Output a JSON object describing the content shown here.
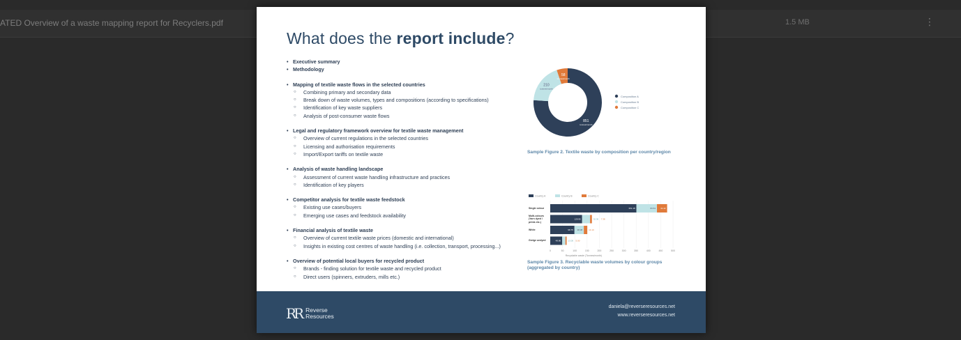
{
  "file_row": {
    "name": "ATED Overview of a waste mapping report for Recyclers.pdf",
    "size": "1.5 MB",
    "more_icon": "more-vert-icon"
  },
  "slide": {
    "title_pre": "What does the ",
    "title_bold": "report include",
    "title_post": "?",
    "groups": [
      {
        "items": [
          "Executive summary"
        ],
        "subs": []
      },
      {
        "items": [
          "Methodology"
        ],
        "subs": []
      },
      {
        "items": [
          "Mapping of textile waste flows in the selected countries"
        ],
        "subs": [
          "Combining primary and secondary data",
          "Break down of waste volumes, types and compositions (according to specifications)",
          "Identification of key waste suppliers",
          "Analysis of post-consumer waste flows"
        ]
      },
      {
        "items": [
          "Legal and regulatory framework overview for textile waste management"
        ],
        "subs": [
          "Overview of current regulations in the selected countries",
          "Licensing and authorisation requirements",
          "Import/Export tariffs on textile waste"
        ]
      },
      {
        "items": [
          "Analysis of waste handling landscape"
        ],
        "subs": [
          "Assessment of current waste handling infrastructure and practices",
          "Identification of key players"
        ]
      },
      {
        "items": [
          "Competitor analysis for textile waste feedstock"
        ],
        "subs": [
          "Existing use cases/buyers",
          "Emerging use cases and feedstock availability"
        ]
      },
      {
        "items": [
          "Financial analysis of textile waste"
        ],
        "subs": [
          "Overview of current textile waste prices (domestic and international)",
          "Insights in existing cost centres of waste handling (i.e. collection, transport, processing...)"
        ]
      },
      {
        "items": [
          "Overview of potential local buyers for recycled product"
        ],
        "subs": [
          "Brands - finding solution for textile waste and recycled product",
          "Direct users (spinners, extruders, mills etc.)"
        ]
      }
    ],
    "footer": {
      "logo_mark": "RR",
      "logo_line1": "Reverse",
      "logo_line2": "Resources",
      "email": "daniela@reverseresources.net",
      "website": "www.reverseresources.net"
    }
  },
  "chart_data": [
    {
      "type": "pie",
      "donut": true,
      "caption": "Sample Figure 2. Textile waste by composition per country/region",
      "slices": [
        {
          "name": "Composition A",
          "value": 851,
          "label": "851",
          "unit": "tonnes/month",
          "color": "#2e4059"
        },
        {
          "name": "Composition B",
          "value": 210,
          "label": "210",
          "unit": "tonnes/month",
          "color": "#bfe3e6"
        },
        {
          "name": "Composition C",
          "value": 58,
          "label": "58",
          "unit": "tonnes/month",
          "color": "#e07a3a"
        }
      ],
      "legend": "right"
    },
    {
      "type": "bar",
      "orientation": "horizontal",
      "stacked": true,
      "caption": "Sample Figure 3. Recyclable waste volumes by colour groups (aggregated by country)",
      "categories": [
        "Single colour",
        "Multi-colours (Yarn dyed / prints etc.)",
        "White",
        "Greige undyed"
      ],
      "series": [
        {
          "name": "Country A",
          "color": "#2e4059",
          "values": [
            351.18,
            129.95,
            98.75,
            48.86
          ]
        },
        {
          "name": "Country B",
          "color": "#bfe3e6",
          "values": [
            83.54,
            32.36,
            38.08,
            13.0
          ]
        },
        {
          "name": "Country C",
          "color": "#e07a3a",
          "values": [
            41.42,
            7.38,
            14.1,
            5.0
          ]
        }
      ],
      "xlabel": "Recyclable waste (Tonnes/month)",
      "xlim": [
        0,
        500
      ],
      "xticks": [
        0,
        50,
        100,
        150,
        200,
        250,
        300,
        350,
        400,
        450,
        500
      ],
      "grid": true,
      "legend": "top"
    }
  ]
}
